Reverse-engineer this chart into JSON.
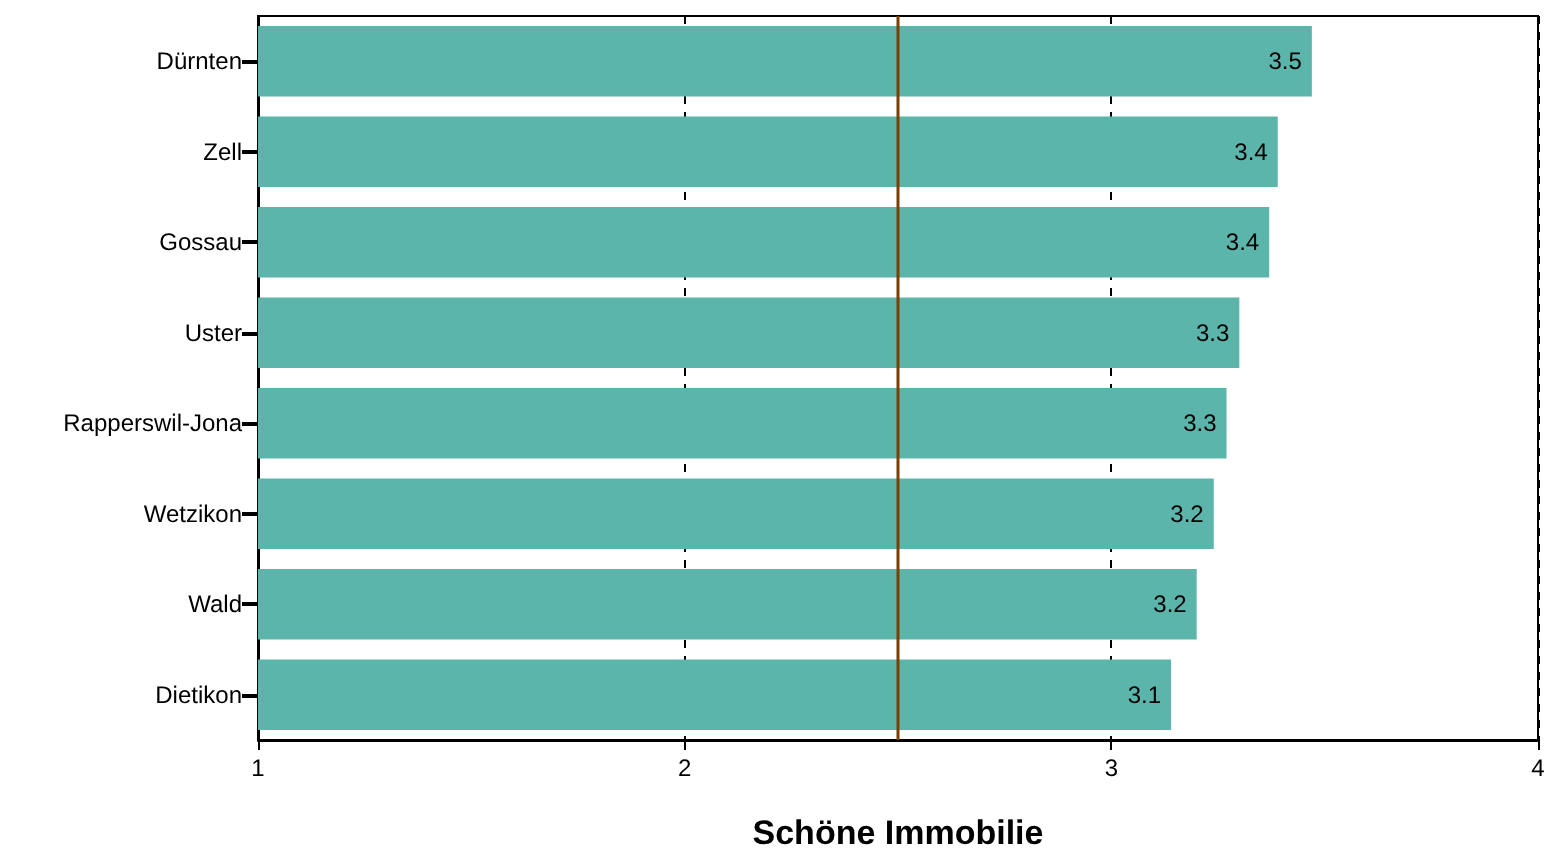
{
  "chart_data": {
    "type": "bar",
    "orientation": "horizontal",
    "xlabel": "Schöne Immobilie",
    "categories": [
      "Dürnten",
      "Zell",
      "Gossau",
      "Uster",
      "Rapperswil-Jona",
      "Wetzikon",
      "Wald",
      "Dietikon"
    ],
    "values": [
      3.47,
      3.39,
      3.37,
      3.3,
      3.27,
      3.24,
      3.2,
      3.14
    ],
    "value_labels": [
      "3.5",
      "3.4",
      "3.4",
      "3.3",
      "3.3",
      "3.2",
      "3.2",
      "3.1"
    ],
    "color": "#5bb5ab",
    "xlim": [
      1,
      4
    ],
    "xticks": [
      1,
      2,
      3,
      4
    ],
    "grid": "x",
    "ref_lines": [
      {
        "axis": "x",
        "value": 2.5,
        "color": "#7b3f00"
      }
    ]
  }
}
